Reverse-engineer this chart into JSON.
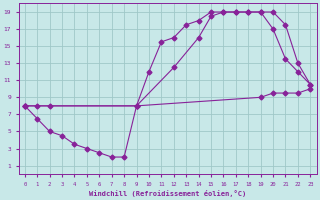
{
  "xlabel": "Windchill (Refroidissement éolien,°C)",
  "bg_color": "#c8e8e8",
  "grid_color": "#a0c8c8",
  "line_color": "#882299",
  "xlim": [
    -0.5,
    23.5
  ],
  "ylim": [
    0,
    20
  ],
  "xticks": [
    0,
    1,
    2,
    3,
    4,
    5,
    6,
    7,
    8,
    9,
    10,
    11,
    12,
    13,
    14,
    15,
    16,
    17,
    18,
    19,
    20,
    21,
    22,
    23
  ],
  "yticks": [
    1,
    3,
    5,
    7,
    9,
    11,
    13,
    15,
    17,
    19
  ],
  "line1_x": [
    0,
    1,
    2,
    9,
    19,
    20,
    21,
    22,
    23
  ],
  "line1_y": [
    8,
    8,
    8,
    8,
    9,
    9.5,
    9.5,
    9.5,
    10
  ],
  "line2_x": [
    0,
    1,
    2,
    3,
    4,
    5,
    6,
    7,
    8,
    9,
    12,
    14,
    15,
    16,
    17,
    18,
    19,
    20,
    21,
    22,
    23
  ],
  "line2_y": [
    8,
    6.5,
    5,
    4.5,
    3.5,
    3,
    2.5,
    2,
    2,
    8,
    12.5,
    16,
    18.5,
    19,
    19,
    19,
    19,
    17,
    13.5,
    12,
    10.5
  ],
  "line3_x": [
    0,
    9,
    10,
    11,
    12,
    13,
    14,
    15,
    16,
    17,
    18,
    19,
    20,
    21,
    22,
    23
  ],
  "line3_y": [
    8,
    8,
    12,
    15.5,
    16,
    17.5,
    18,
    19,
    19,
    19,
    19,
    19,
    19,
    17.5,
    13,
    10.5
  ]
}
